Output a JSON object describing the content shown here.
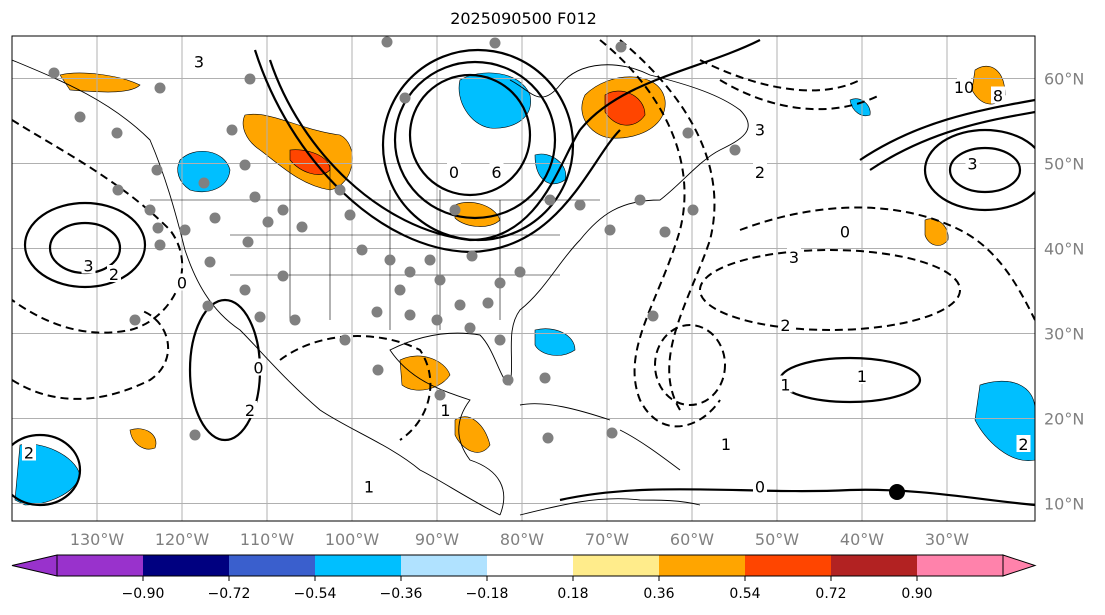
{
  "chart_data": {
    "type": "map",
    "title": "2025090500 F012",
    "projection": "plate-carree",
    "lon_range": [
      -140,
      -20
    ],
    "lat_range": [
      8,
      65
    ],
    "lon_ticks": [
      {
        "lon": -130,
        "label": "130°W"
      },
      {
        "lon": -120,
        "label": "120°W"
      },
      {
        "lon": -110,
        "label": "110°W"
      },
      {
        "lon": -100,
        "label": "100°W"
      },
      {
        "lon": -90,
        "label": "90°W"
      },
      {
        "lon": -80,
        "label": "80°W"
      },
      {
        "lon": -70,
        "label": "70°W"
      },
      {
        "lon": -60,
        "label": "60°W"
      },
      {
        "lon": -50,
        "label": "50°W"
      },
      {
        "lon": -40,
        "label": "40°W"
      },
      {
        "lon": -30,
        "label": "30°W"
      }
    ],
    "lat_ticks": [
      {
        "lat": 60,
        "label": "60°N"
      },
      {
        "lat": 50,
        "label": "50°N"
      },
      {
        "lat": 40,
        "label": "40°N"
      },
      {
        "lat": 30,
        "label": "30°N"
      },
      {
        "lat": 20,
        "label": "20°N"
      },
      {
        "lat": 10,
        "label": "10°N"
      }
    ],
    "grid": true,
    "colorbar": {
      "placement": "bottom",
      "extend": "both",
      "levels": [
        "−0.90",
        "−0.72",
        "−0.54",
        "−0.36",
        "−0.18",
        "0.18",
        "0.36",
        "0.54",
        "0.72",
        "0.90"
      ],
      "colors": [
        "#9932CC",
        "#000080",
        "#3A5FCD",
        "#00BFFF",
        "#B0E2FF",
        "#FFFFFF",
        "#FFEC8B",
        "#FFA500",
        "#FF4500",
        "#B22222",
        "#FF82AB"
      ]
    },
    "contour_labels": [
      {
        "text": "3",
        "lon": -118,
        "lat": 62
      },
      {
        "text": "0",
        "lon": -88,
        "lat": 49
      },
      {
        "text": "6",
        "lon": -83,
        "lat": 49
      },
      {
        "text": "2",
        "lon": -52,
        "lat": 49
      },
      {
        "text": "3",
        "lon": -52,
        "lat": 54
      },
      {
        "text": "10",
        "lon": -28,
        "lat": 59
      },
      {
        "text": "8",
        "lon": -24,
        "lat": 58
      },
      {
        "text": "3",
        "lon": -27,
        "lat": 50
      },
      {
        "text": "0",
        "lon": -42,
        "lat": 42
      },
      {
        "text": "3",
        "lon": -48,
        "lat": 39
      },
      {
        "text": "2",
        "lon": -49,
        "lat": 31
      },
      {
        "text": "3",
        "lon": -131,
        "lat": 38
      },
      {
        "text": "2",
        "lon": -128,
        "lat": 37
      },
      {
        "text": "0",
        "lon": -120,
        "lat": 36
      },
      {
        "text": "1",
        "lon": -49,
        "lat": 24
      },
      {
        "text": "1",
        "lon": -40,
        "lat": 25
      },
      {
        "text": "1",
        "lon": -89,
        "lat": 21
      },
      {
        "text": "1",
        "lon": -56,
        "lat": 17
      },
      {
        "text": "0",
        "lon": -52,
        "lat": 12
      },
      {
        "text": "1",
        "lon": -98,
        "lat": 12
      },
      {
        "text": "2",
        "lon": -112,
        "lat": 21
      },
      {
        "text": "2",
        "lon": -138,
        "lat": 16
      },
      {
        "text": "2",
        "lon": -21,
        "lat": 17
      },
      {
        "text": "0",
        "lon": -111,
        "lat": 26
      }
    ]
  }
}
